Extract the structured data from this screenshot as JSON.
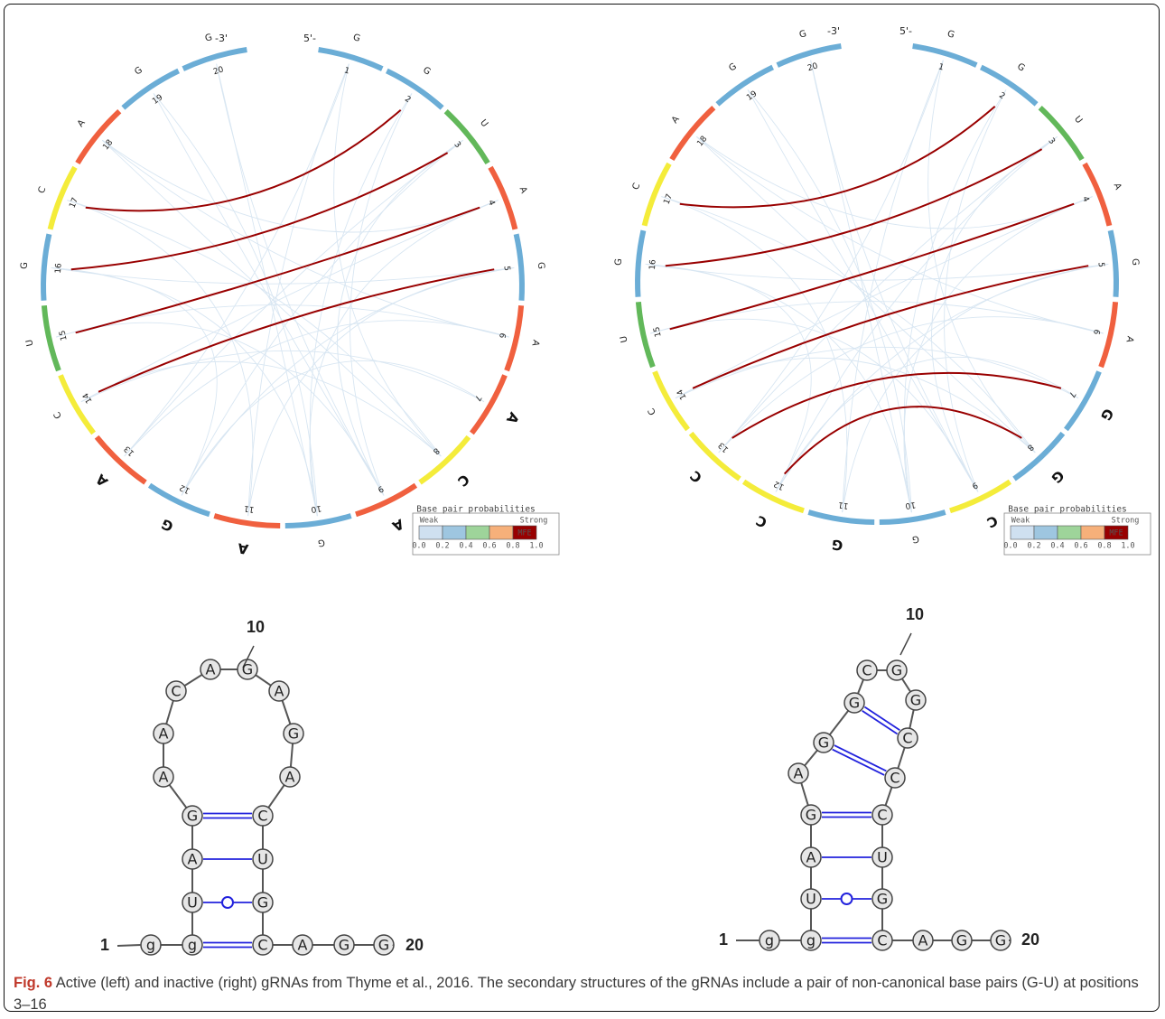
{
  "caption": {
    "label": "Fig. 6",
    "text": " Active (left) and inactive (right) gRNAs from Thyme et al., 2016. The secondary structures of the gRNAs include a pair of non-canonical base pairs (G-U) at positions 3–16"
  },
  "colors": {
    "A": "#f0603f",
    "C": "#f4ec3a",
    "G": "#6badd6",
    "U": "#62b85a",
    "mfe": "#990000",
    "weak": "#d8e6f2"
  },
  "end_labels": {
    "three_prime": "-3'",
    "five_prime": "5'-"
  },
  "legend": {
    "title": "Base pair probabilities",
    "weak": "Weak",
    "strong": "Strong",
    "mfe": "MFE",
    "ticks": [
      "0.0",
      "0.2",
      "0.4",
      "0.6",
      "0.8",
      "1.0"
    ],
    "swatch_colors": [
      "#cfe0f0",
      "#9ec6e0",
      "#9ed49a",
      "#f6b07a",
      "#990000"
    ]
  },
  "circles": [
    {
      "name": "active",
      "sequence": [
        "G",
        "G",
        "U",
        "A",
        "G",
        "A",
        "A",
        "C",
        "A",
        "G",
        "A",
        "G",
        "A",
        "C",
        "U",
        "G",
        "C",
        "A",
        "G",
        "G"
      ],
      "bold": [
        7,
        8,
        9,
        11,
        12,
        13
      ],
      "mfe_pairs": [
        [
          2,
          17
        ],
        [
          3,
          16
        ],
        [
          4,
          15
        ],
        [
          5,
          14
        ]
      ]
    },
    {
      "name": "inactive",
      "sequence": [
        "G",
        "G",
        "U",
        "A",
        "G",
        "A",
        "G",
        "G",
        "C",
        "G",
        "G",
        "C",
        "C",
        "C",
        "U",
        "G",
        "C",
        "A",
        "G",
        "G"
      ],
      "bold": [
        7,
        8,
        9,
        11,
        12,
        13
      ],
      "mfe_pairs": [
        [
          2,
          17
        ],
        [
          3,
          16
        ],
        [
          4,
          15
        ],
        [
          5,
          14
        ],
        [
          7,
          13
        ],
        [
          8,
          12
        ]
      ]
    }
  ],
  "structures": [
    {
      "name": "active",
      "sequence": [
        "g",
        "g",
        "U",
        "A",
        "G",
        "A",
        "A",
        "C",
        "A",
        "G",
        "A",
        "G",
        "A",
        "C",
        "U",
        "G",
        "C",
        "A",
        "G",
        "G"
      ],
      "start_label": "1",
      "end_label": "20",
      "tick_label": "10"
    },
    {
      "name": "inactive",
      "sequence": [
        "g",
        "g",
        "U",
        "A",
        "G",
        "A",
        "G",
        "G",
        "C",
        "G",
        "G",
        "C",
        "C",
        "C",
        "U",
        "G",
        "C",
        "A",
        "G",
        "G"
      ],
      "start_label": "1",
      "end_label": "20",
      "tick_label": "10"
    }
  ]
}
